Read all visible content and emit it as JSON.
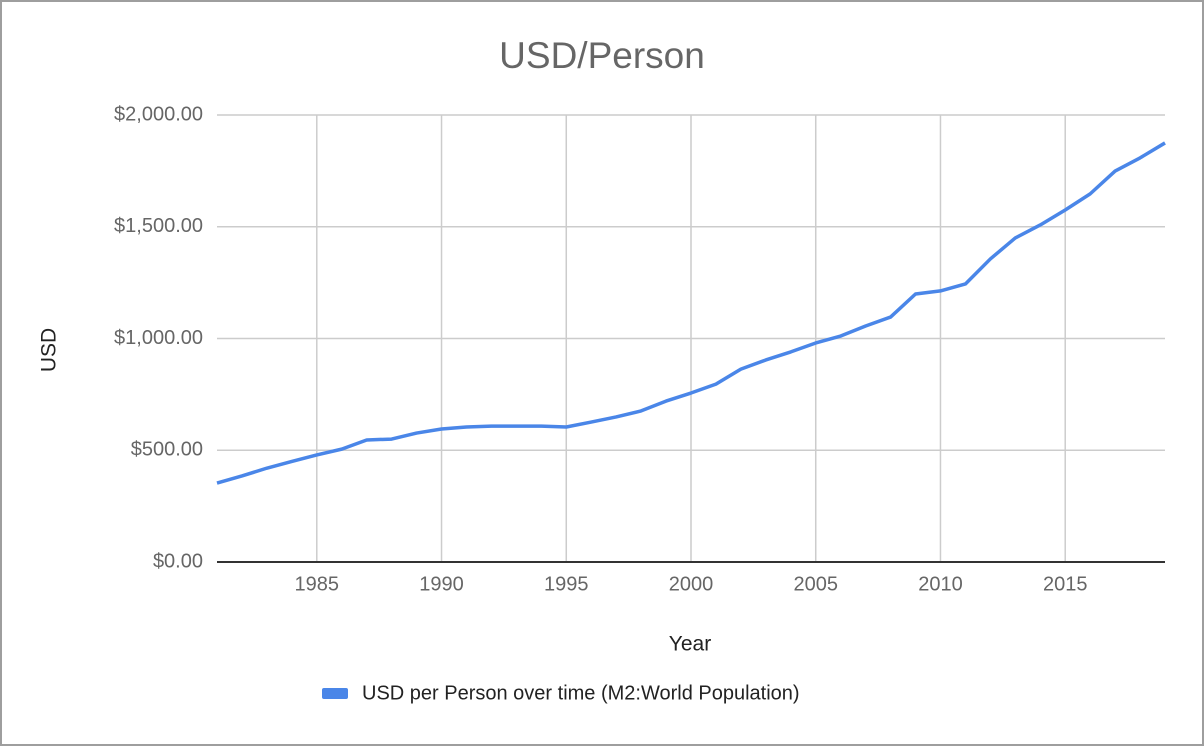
{
  "chart_data": {
    "type": "line",
    "title": "USD/Person",
    "x_label": "Year",
    "y_label": "USD",
    "x": [
      1981,
      1982,
      1983,
      1984,
      1985,
      1986,
      1987,
      1988,
      1989,
      1990,
      1991,
      1992,
      1993,
      1994,
      1995,
      1996,
      1997,
      1998,
      1999,
      2000,
      2001,
      2002,
      2003,
      2004,
      2005,
      2006,
      2007,
      2008,
      2009,
      2010,
      2011,
      2012,
      2013,
      2014,
      2015,
      2016,
      2017,
      2018,
      2019
    ],
    "series": [
      {
        "name": "USD per Person over time (M2:World Population)",
        "color": "#4a86e8",
        "values": [
          353,
          385,
          420,
          450,
          479,
          505,
          546,
          550,
          577,
          595,
          604,
          608,
          608,
          608,
          604,
          626,
          649,
          676,
          720,
          756,
          796,
          863,
          904,
          940,
          980,
          1011,
          1056,
          1096,
          1199,
          1213,
          1244,
          1356,
          1450,
          1508,
          1575,
          1647,
          1749,
          1808,
          1875
        ]
      }
    ],
    "xlim": [
      1981,
      2019
    ],
    "xticks": [
      1985,
      1990,
      1995,
      2000,
      2005,
      2010,
      2015
    ],
    "ylim": [
      0,
      2000
    ],
    "yticks": [
      {
        "value": 0,
        "label": "$0.00"
      },
      {
        "value": 500,
        "label": "$500.00"
      },
      {
        "value": 1000,
        "label": "$1,000.00"
      },
      {
        "value": 1500,
        "label": "$1,500.00"
      },
      {
        "value": 2000,
        "label": "$2,000.00"
      }
    ],
    "grid": true,
    "legend": "bottom"
  }
}
